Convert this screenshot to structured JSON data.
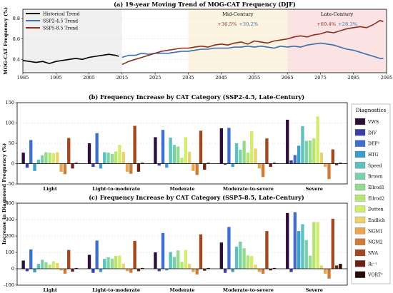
{
  "chart_data": [
    {
      "type": "line",
      "title": "(a) 19-year Moving Trend of MOG-CAT Frequency (DJF)",
      "ylabel": "MOG-CAT Frequency (%)",
      "xlim": [
        1985,
        2095
      ],
      "ylim": [
        0.27,
        0.89
      ],
      "x_ticks": [
        1985,
        1995,
        2005,
        2015,
        2025,
        2035,
        2045,
        2055,
        2065,
        2075,
        2085,
        2095
      ],
      "y_ticks": [
        0.4,
        0.6,
        0.8
      ],
      "regions": [
        {
          "label": "",
          "from": 1985,
          "to": 2015,
          "color": "#f0f0f0"
        },
        {
          "label": "Mid-Century",
          "from": 2035,
          "to": 2065,
          "color": "#fdf3e1"
        },
        {
          "label": "Late-Century",
          "from": 2065,
          "to": 2095,
          "color": "#fbe3e3"
        }
      ],
      "annotations": [
        {
          "region": "Mid-Century",
          "ssp585": "+36.5%",
          "ssp245": "+30.2%"
        },
        {
          "region": "Late-Century",
          "ssp585": "+69.4%",
          "ssp245": "+28.3%"
        }
      ],
      "series": [
        {
          "name": "Historical Trend",
          "color": "#000000",
          "x": [
            1985,
            1987,
            1989,
            1991,
            1993,
            1995,
            1997,
            1999,
            2001,
            2003,
            2005,
            2007,
            2009,
            2011,
            2013,
            2014
          ],
          "y": [
            0.39,
            0.38,
            0.37,
            0.38,
            0.36,
            0.38,
            0.39,
            0.4,
            0.41,
            0.4,
            0.42,
            0.43,
            0.44,
            0.45,
            0.44,
            0.43
          ]
        },
        {
          "name": "SSP2-4.5 Trend",
          "color": "#3a6fb0",
          "x": [
            2015,
            2017,
            2019,
            2021,
            2023,
            2025,
            2027,
            2029,
            2031,
            2033,
            2035,
            2037,
            2039,
            2041,
            2043,
            2045,
            2047,
            2049,
            2051,
            2053,
            2055,
            2057,
            2059,
            2061,
            2063,
            2065,
            2067,
            2069,
            2071,
            2073,
            2075,
            2077,
            2079,
            2081,
            2083,
            2085,
            2087,
            2089,
            2091,
            2093,
            2094
          ],
          "y": [
            0.42,
            0.44,
            0.44,
            0.46,
            0.45,
            0.46,
            0.46,
            0.46,
            0.47,
            0.48,
            0.48,
            0.49,
            0.5,
            0.5,
            0.51,
            0.51,
            0.51,
            0.52,
            0.52,
            0.53,
            0.52,
            0.53,
            0.52,
            0.51,
            0.53,
            0.52,
            0.53,
            0.52,
            0.54,
            0.55,
            0.56,
            0.55,
            0.54,
            0.52,
            0.5,
            0.49,
            0.47,
            0.45,
            0.43,
            0.41,
            0.41
          ]
        },
        {
          "name": "SSP5-8.5 Trend",
          "color": "#8b2e1e",
          "x": [
            2015,
            2017,
            2019,
            2021,
            2023,
            2025,
            2027,
            2029,
            2031,
            2033,
            2035,
            2037,
            2039,
            2041,
            2043,
            2045,
            2047,
            2049,
            2051,
            2053,
            2055,
            2057,
            2059,
            2061,
            2063,
            2065,
            2067,
            2069,
            2071,
            2073,
            2075,
            2077,
            2079,
            2081,
            2083,
            2085,
            2087,
            2089,
            2091,
            2093,
            2094
          ],
          "y": [
            0.35,
            0.38,
            0.4,
            0.42,
            0.44,
            0.46,
            0.48,
            0.49,
            0.5,
            0.51,
            0.51,
            0.52,
            0.53,
            0.52,
            0.54,
            0.55,
            0.54,
            0.56,
            0.57,
            0.55,
            0.58,
            0.57,
            0.56,
            0.58,
            0.59,
            0.6,
            0.62,
            0.63,
            0.62,
            0.64,
            0.65,
            0.67,
            0.66,
            0.68,
            0.7,
            0.71,
            0.72,
            0.71,
            0.74,
            0.78,
            0.77
          ]
        }
      ]
    },
    {
      "type": "bar",
      "title": "(b) Frequency Increase by CAT Category (SSP2-4.5, Late-Century)",
      "ylabel": "Increase in Diagnosed Frequency (%)",
      "ylim": [
        -50,
        150
      ],
      "y_ticks": [
        -50,
        0,
        50,
        100,
        150
      ],
      "grid": true,
      "categories": [
        "Light",
        "Light-to-moderate",
        "Moderate",
        "Moderate-to-severe",
        "Severe"
      ],
      "series": [
        {
          "name": "VWS",
          "color": "#2d0f3b",
          "values": [
            27,
            50,
            65,
            87,
            108
          ]
        },
        {
          "name": "DIV",
          "color": "#3a3fa8",
          "values": [
            -10,
            -8,
            -5,
            -3,
            8
          ]
        },
        {
          "name": "DEF²",
          "color": "#3e6fd0",
          "values": [
            58,
            75,
            83,
            88,
            21
          ]
        },
        {
          "name": "HTG",
          "color": "#3a9fc9",
          "values": [
            -18,
            -12,
            -10,
            -8,
            44
          ]
        },
        {
          "name": "Speed",
          "color": "#5fc0c0",
          "values": [
            10,
            28,
            64,
            50,
            92
          ]
        },
        {
          "name": "Brown",
          "color": "#78d1a8",
          "values": [
            20,
            27,
            46,
            34,
            56
          ]
        },
        {
          "name": "Ellrod1",
          "color": "#94dc8c",
          "values": [
            28,
            24,
            42,
            56,
            57
          ]
        },
        {
          "name": "Ellrod2",
          "color": "#b6e571",
          "values": [
            27,
            30,
            14,
            27,
            62
          ]
        },
        {
          "name": "Dutton",
          "color": "#d2ec6c",
          "values": [
            26,
            46,
            65,
            80,
            116
          ]
        },
        {
          "name": "Endlich",
          "color": "#e8d36e",
          "values": [
            28,
            29,
            29,
            37,
            27
          ]
        },
        {
          "name": "NGM1",
          "color": "#e8a64f",
          "values": [
            -20,
            -20,
            -18,
            -12,
            -8
          ]
        },
        {
          "name": "NGM2",
          "color": "#d17a37",
          "values": [
            -26,
            -25,
            -28,
            -33,
            -38
          ]
        },
        {
          "name": "NVA",
          "color": "#a3481e",
          "values": [
            63,
            93,
            81,
            62,
            35
          ]
        },
        {
          "name": "Ri⁻¹",
          "color": "#6d2213",
          "values": [
            -12,
            -20,
            -15,
            -8,
            -4
          ]
        },
        {
          "name": "VORT²",
          "color": "#260a05",
          "values": [
            2,
            2,
            2,
            2,
            2
          ]
        }
      ]
    },
    {
      "type": "bar",
      "title": "(c) Frequency Increase by CAT Category (SSP5-8.5, Late-Century)",
      "ylabel": "Increase in Diagnosed Frequency (%)",
      "ylim": [
        -100,
        400
      ],
      "y_ticks": [
        -100,
        0,
        100,
        200,
        300,
        400
      ],
      "grid": true,
      "categories": [
        "Light",
        "Light-to-moderate",
        "Moderate",
        "Moderate-to-severe",
        "Severe"
      ],
      "series": [
        {
          "name": "VWS",
          "color": "#2d0f3b",
          "values": [
            50,
            85,
            100,
            160,
            340
          ]
        },
        {
          "name": "DIV",
          "color": "#3a3fa8",
          "values": [
            -15,
            -25,
            -15,
            -25,
            -20
          ]
        },
        {
          "name": "DEF²",
          "color": "#3e6fd0",
          "values": [
            118,
            172,
            218,
            255,
            345
          ]
        },
        {
          "name": "HTG",
          "color": "#3a9fc9",
          "values": [
            -22,
            -20,
            -10,
            -20,
            230
          ]
        },
        {
          "name": "Speed",
          "color": "#5fc0c0",
          "values": [
            30,
            60,
            102,
            135,
            272
          ]
        },
        {
          "name": "Brown",
          "color": "#78d1a8",
          "values": [
            55,
            70,
            72,
            165,
            175
          ]
        },
        {
          "name": "Ellrod1",
          "color": "#94dc8c",
          "values": [
            40,
            62,
            112,
            125,
            80
          ]
        },
        {
          "name": "Ellrod2",
          "color": "#b6e571",
          "values": [
            25,
            78,
            42,
            82,
            285
          ]
        },
        {
          "name": "Dutton",
          "color": "#d2ec6c",
          "values": [
            46,
            80,
            115,
            78,
            285
          ]
        },
        {
          "name": "Endlich",
          "color": "#e8d36e",
          "values": [
            35,
            30,
            30,
            25,
            20
          ]
        },
        {
          "name": "NGM1",
          "color": "#e8a64f",
          "values": [
            -10,
            -15,
            -20,
            -20,
            -30
          ]
        },
        {
          "name": "NGM2",
          "color": "#d17a37",
          "values": [
            -30,
            -25,
            -35,
            -30,
            -60
          ]
        },
        {
          "name": "NVA",
          "color": "#a3481e",
          "values": [
            115,
            170,
            210,
            230,
            305
          ]
        },
        {
          "name": "Ri⁻¹",
          "color": "#6d2213",
          "values": [
            -18,
            -15,
            -12,
            -10,
            20
          ]
        },
        {
          "name": "VORT²",
          "color": "#260a05",
          "values": [
            5,
            5,
            5,
            5,
            30
          ]
        }
      ]
    }
  ],
  "legend": {
    "title": "Diagnostics"
  }
}
